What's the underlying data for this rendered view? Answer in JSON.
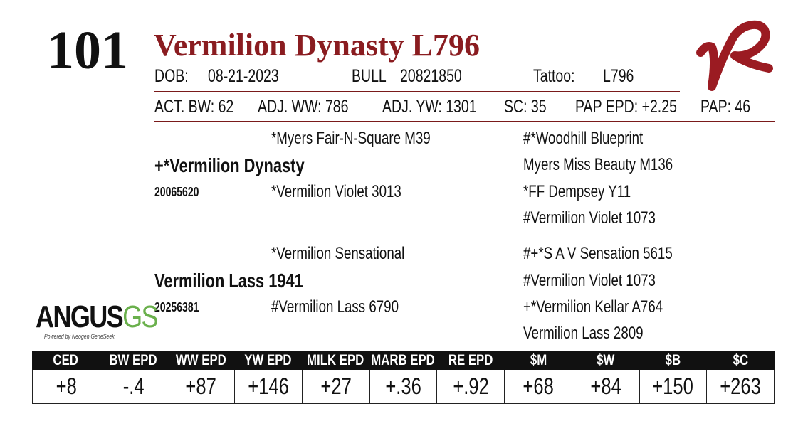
{
  "lot": "101",
  "name": "Vermilion Dynasty L796",
  "info": [
    {
      "label": "DOB:",
      "value": "08-21-2023"
    },
    {
      "label": "BULL",
      "value": "20821850"
    },
    {
      "label": "Tattoo:",
      "value": "L796"
    }
  ],
  "stats": [
    "ACT. BW: 62",
    "ADJ. WW: 786",
    "ADJ. YW: 1301",
    "SC: 35",
    "PAP EPD: +2.25",
    "PAP: 46"
  ],
  "pedigree": {
    "sire": {
      "name": "+*Vermilion Dynasty",
      "reg": "20065620",
      "sire": "*Myers Fair-N-Square M39",
      "dam": "*Vermilion Violet 3013",
      "grand": [
        "#*Woodhill Blueprint",
        "Myers Miss Beauty M136",
        "*FF Dempsey Y11",
        "#Vermilion Violet 1073"
      ]
    },
    "dam": {
      "name": "Vermilion Lass 1941",
      "reg": "20256381",
      "sire": "*Vermilion Sensational",
      "dam": "#Vermilion Lass 6790",
      "grand": [
        "#+*S A V Sensation 5615",
        "#Vermilion Violet 1073",
        "+*Vermilion Kellar A764",
        "Vermilion Lass 2809"
      ]
    }
  },
  "logo": {
    "main": "ANGUS",
    "accent": "GS",
    "tagline": "Powered by Neogen GeneSeek"
  },
  "epd": {
    "headers": [
      "CED",
      "BW EPD",
      "WW EPD",
      "YW EPD",
      "MILK EPD",
      "MARB EPD",
      "RE EPD",
      "$M",
      "$W",
      "$B",
      "$C"
    ],
    "values": [
      "+8",
      "-.4",
      "+87",
      "+146",
      "+27",
      "+.36",
      "+.92",
      "+68",
      "+84",
      "+150",
      "+263"
    ]
  }
}
